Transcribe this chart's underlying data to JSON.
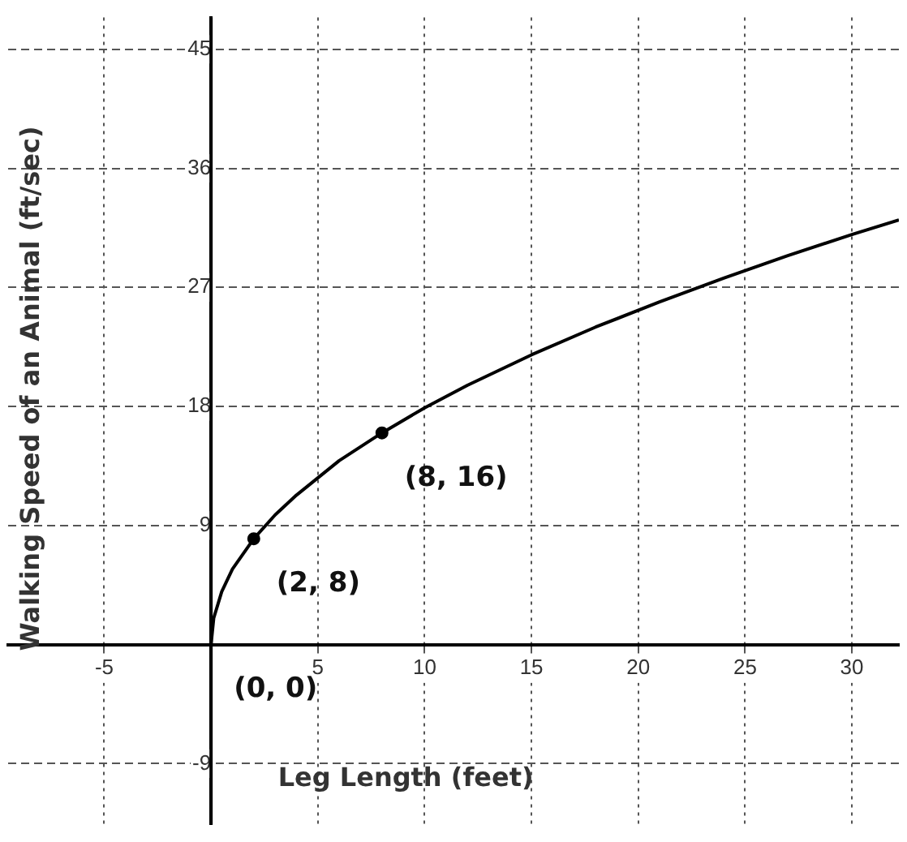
{
  "chart_data": {
    "type": "line",
    "xlabel": "Leg Length (feet)",
    "ylabel": "Walking Speed of an Animal (ft/sec)",
    "xlim": [
      -9.5,
      32.2
    ],
    "ylim": [
      -13.6,
      47.4
    ],
    "xticks": [
      -5,
      {
        "value": 0,
        "label": null
      },
      5,
      10,
      15,
      20,
      25,
      30
    ],
    "yticks": [
      -9,
      {
        "value": 0,
        "label": null
      },
      9,
      18,
      27,
      36,
      45
    ],
    "grid": true,
    "series": [
      {
        "color": "#000000",
        "marker": "none",
        "x": [
          0,
          0.125,
          0.5,
          1,
          2,
          3,
          4,
          6,
          8,
          10,
          12,
          15,
          18,
          21,
          24,
          27,
          30,
          32.2
        ],
        "values": [
          0,
          2,
          4,
          5.7,
          8,
          9.8,
          11.3,
          13.9,
          16,
          17.9,
          19.6,
          21.9,
          24,
          25.9,
          27.7,
          29.4,
          31,
          32.1
        ]
      },
      {
        "type": "scatter",
        "color": "#000000",
        "marker": "circle",
        "x": [
          2,
          8
        ],
        "values": [
          8,
          16
        ]
      }
    ],
    "annotations": [
      {
        "text": "(0, 0)",
        "x": 0,
        "y": 0
      },
      {
        "text": "(2, 8)",
        "x": 2,
        "y": 8
      },
      {
        "text": "(8, 16)",
        "x": 8,
        "y": 16
      }
    ]
  }
}
